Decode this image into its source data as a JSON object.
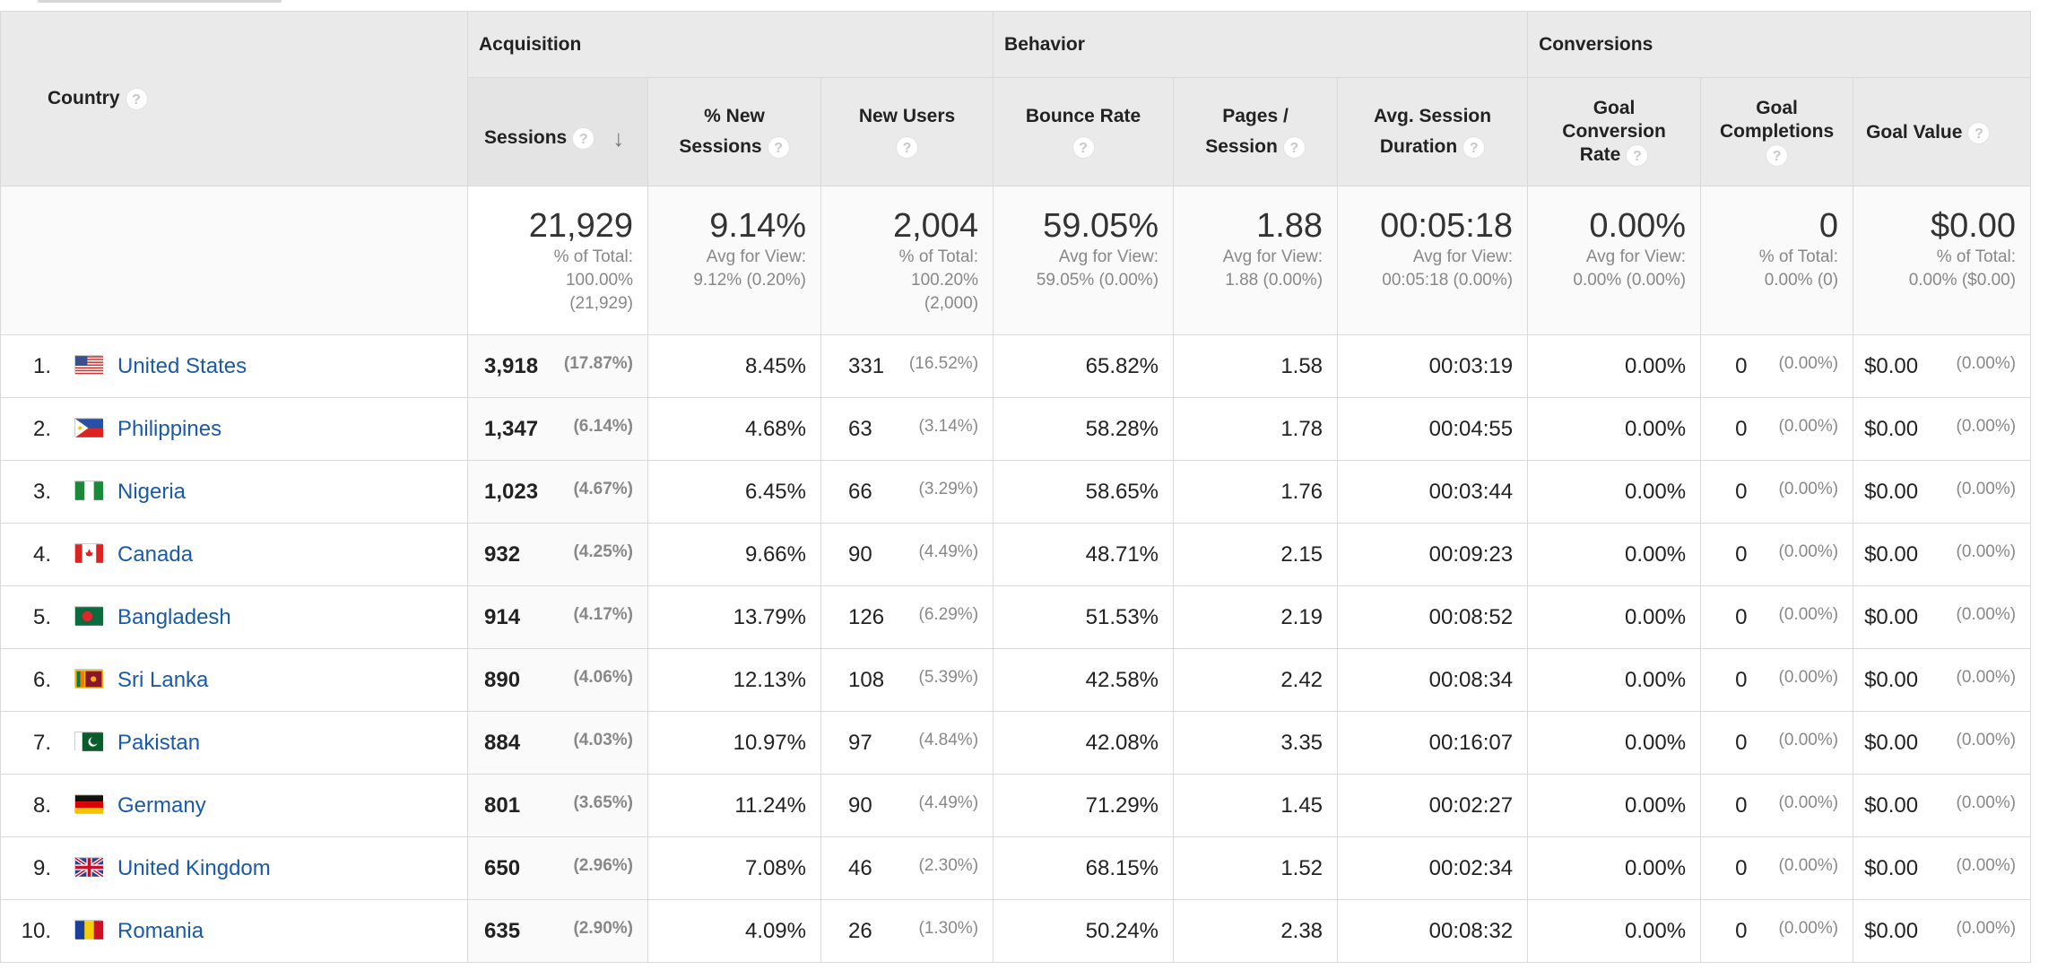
{
  "header": {
    "country_label": "Country",
    "groups": {
      "acquisition": "Acquisition",
      "behavior": "Behavior",
      "conversions": "Conversions"
    },
    "columns": {
      "sessions": "Sessions",
      "pct_new_sessions_1": "% New",
      "pct_new_sessions_2": "Sessions",
      "new_users": "New Users",
      "bounce_rate": "Bounce Rate",
      "pages_session_1": "Pages /",
      "pages_session_2": "Session",
      "avg_duration_1": "Avg. Session",
      "avg_duration_2": "Duration",
      "goal_conv_1": "Goal",
      "goal_conv_2": "Conversion",
      "goal_conv_3": "Rate",
      "goal_comp_1": "Goal",
      "goal_comp_2": "Completions",
      "goal_value": "Goal Value"
    },
    "help_icon_text": "?"
  },
  "totals": {
    "sessions": {
      "value": "21,929",
      "sub": "% of Total:\n100.00%\n(21,929)"
    },
    "pct_new_sessions": {
      "value": "9.14%",
      "sub": "Avg for View:\n9.12% (0.20%)"
    },
    "new_users": {
      "value": "2,004",
      "sub": "% of Total:\n100.20%\n(2,000)"
    },
    "bounce_rate": {
      "value": "59.05%",
      "sub": "Avg for View:\n59.05% (0.00%)"
    },
    "pages_session": {
      "value": "1.88",
      "sub": "Avg for View:\n1.88 (0.00%)"
    },
    "avg_duration": {
      "value": "00:05:18",
      "sub": "Avg for View:\n00:05:18 (0.00%)"
    },
    "goal_conv_rate": {
      "value": "0.00%",
      "sub": "Avg for View:\n0.00% (0.00%)"
    },
    "goal_completions": {
      "value": "0",
      "sub": "% of Total:\n0.00% (0)"
    },
    "goal_value": {
      "value": "$0.00",
      "sub": "% of Total:\n0.00% ($0.00)"
    }
  },
  "rows": [
    {
      "rank": "1.",
      "flag": "us-flag-icon",
      "country": "United States",
      "sessions": "3,918",
      "sessions_pct": "(17.87%)",
      "pct_new": "8.45%",
      "new_users": "331",
      "new_users_pct": "(16.52%)",
      "bounce": "65.82%",
      "pages": "1.58",
      "duration": "00:03:19",
      "goal_rate": "0.00%",
      "goal_comp": "0",
      "goal_comp_pct": "(0.00%)",
      "goal_value": "$0.00",
      "goal_value_pct": "(0.00%)"
    },
    {
      "rank": "2.",
      "flag": "ph-flag-icon",
      "country": "Philippines",
      "sessions": "1,347",
      "sessions_pct": "(6.14%)",
      "pct_new": "4.68%",
      "new_users": "63",
      "new_users_pct": "(3.14%)",
      "bounce": "58.28%",
      "pages": "1.78",
      "duration": "00:04:55",
      "goal_rate": "0.00%",
      "goal_comp": "0",
      "goal_comp_pct": "(0.00%)",
      "goal_value": "$0.00",
      "goal_value_pct": "(0.00%)"
    },
    {
      "rank": "3.",
      "flag": "ng-flag-icon",
      "country": "Nigeria",
      "sessions": "1,023",
      "sessions_pct": "(4.67%)",
      "pct_new": "6.45%",
      "new_users": "66",
      "new_users_pct": "(3.29%)",
      "bounce": "58.65%",
      "pages": "1.76",
      "duration": "00:03:44",
      "goal_rate": "0.00%",
      "goal_comp": "0",
      "goal_comp_pct": "(0.00%)",
      "goal_value": "$0.00",
      "goal_value_pct": "(0.00%)"
    },
    {
      "rank": "4.",
      "flag": "ca-flag-icon",
      "country": "Canada",
      "sessions": "932",
      "sessions_pct": "(4.25%)",
      "pct_new": "9.66%",
      "new_users": "90",
      "new_users_pct": "(4.49%)",
      "bounce": "48.71%",
      "pages": "2.15",
      "duration": "00:09:23",
      "goal_rate": "0.00%",
      "goal_comp": "0",
      "goal_comp_pct": "(0.00%)",
      "goal_value": "$0.00",
      "goal_value_pct": "(0.00%)"
    },
    {
      "rank": "5.",
      "flag": "bd-flag-icon",
      "country": "Bangladesh",
      "sessions": "914",
      "sessions_pct": "(4.17%)",
      "pct_new": "13.79%",
      "new_users": "126",
      "new_users_pct": "(6.29%)",
      "bounce": "51.53%",
      "pages": "2.19",
      "duration": "00:08:52",
      "goal_rate": "0.00%",
      "goal_comp": "0",
      "goal_comp_pct": "(0.00%)",
      "goal_value": "$0.00",
      "goal_value_pct": "(0.00%)"
    },
    {
      "rank": "6.",
      "flag": "lk-flag-icon",
      "country": "Sri Lanka",
      "sessions": "890",
      "sessions_pct": "(4.06%)",
      "pct_new": "12.13%",
      "new_users": "108",
      "new_users_pct": "(5.39%)",
      "bounce": "42.58%",
      "pages": "2.42",
      "duration": "00:08:34",
      "goal_rate": "0.00%",
      "goal_comp": "0",
      "goal_comp_pct": "(0.00%)",
      "goal_value": "$0.00",
      "goal_value_pct": "(0.00%)"
    },
    {
      "rank": "7.",
      "flag": "pk-flag-icon",
      "country": "Pakistan",
      "sessions": "884",
      "sessions_pct": "(4.03%)",
      "pct_new": "10.97%",
      "new_users": "97",
      "new_users_pct": "(4.84%)",
      "bounce": "42.08%",
      "pages": "3.35",
      "duration": "00:16:07",
      "goal_rate": "0.00%",
      "goal_comp": "0",
      "goal_comp_pct": "(0.00%)",
      "goal_value": "$0.00",
      "goal_value_pct": "(0.00%)"
    },
    {
      "rank": "8.",
      "flag": "de-flag-icon",
      "country": "Germany",
      "sessions": "801",
      "sessions_pct": "(3.65%)",
      "pct_new": "11.24%",
      "new_users": "90",
      "new_users_pct": "(4.49%)",
      "bounce": "71.29%",
      "pages": "1.45",
      "duration": "00:02:27",
      "goal_rate": "0.00%",
      "goal_comp": "0",
      "goal_comp_pct": "(0.00%)",
      "goal_value": "$0.00",
      "goal_value_pct": "(0.00%)"
    },
    {
      "rank": "9.",
      "flag": "gb-flag-icon",
      "country": "United Kingdom",
      "sessions": "650",
      "sessions_pct": "(2.96%)",
      "pct_new": "7.08%",
      "new_users": "46",
      "new_users_pct": "(2.30%)",
      "bounce": "68.15%",
      "pages": "1.52",
      "duration": "00:02:34",
      "goal_rate": "0.00%",
      "goal_comp": "0",
      "goal_comp_pct": "(0.00%)",
      "goal_value": "$0.00",
      "goal_value_pct": "(0.00%)"
    },
    {
      "rank": "10.",
      "flag": "ro-flag-icon",
      "country": "Romania",
      "sessions": "635",
      "sessions_pct": "(2.90%)",
      "pct_new": "4.09%",
      "new_users": "26",
      "new_users_pct": "(1.30%)",
      "bounce": "50.24%",
      "pages": "2.38",
      "duration": "00:08:32",
      "goal_rate": "0.00%",
      "goal_comp": "0",
      "goal_comp_pct": "(0.00%)",
      "goal_value": "$0.00",
      "goal_value_pct": "(0.00%)"
    }
  ]
}
